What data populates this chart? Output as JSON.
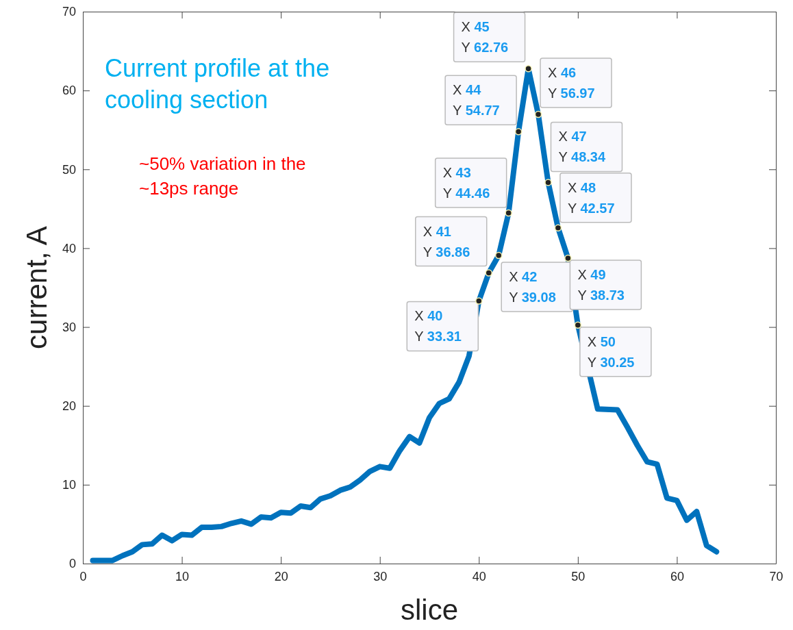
{
  "chart_data": {
    "type": "line",
    "xlabel": "slice",
    "ylabel": "current, A",
    "x": [
      1,
      2,
      3,
      4,
      5,
      6,
      7,
      8,
      9,
      10,
      11,
      12,
      13,
      14,
      15,
      16,
      17,
      18,
      19,
      20,
      21,
      22,
      23,
      24,
      25,
      26,
      27,
      28,
      29,
      30,
      31,
      32,
      33,
      34,
      35,
      36,
      37,
      38,
      39,
      40,
      41,
      42,
      43,
      44,
      45,
      46,
      47,
      48,
      49,
      50,
      51,
      52,
      53,
      54,
      55,
      56,
      57,
      58,
      59,
      60,
      61,
      62,
      63,
      64
    ],
    "series": [
      {
        "color": "#0072bd",
        "values": [
          0.4,
          0.4,
          0.4,
          1.0,
          1.5,
          2.4,
          2.5,
          3.6,
          2.9,
          3.7,
          3.6,
          4.6,
          4.6,
          4.7,
          5.1,
          5.4,
          5.0,
          5.9,
          5.8,
          6.5,
          6.4,
          7.3,
          7.1,
          8.2,
          8.6,
          9.3,
          9.7,
          10.6,
          11.7,
          12.3,
          12.1,
          14.3,
          16.1,
          15.3,
          18.5,
          20.3,
          20.9,
          23.0,
          26.3,
          33.31,
          36.86,
          39.08,
          44.46,
          54.77,
          62.76,
          56.97,
          48.34,
          42.57,
          38.73,
          30.25,
          null,
          19.6,
          null,
          19.5,
          17.3,
          15.0,
          12.9,
          12.6,
          8.3,
          8.0,
          5.5,
          6.6,
          2.3,
          1.5
        ]
      }
    ],
    "xlim": [
      0,
      70
    ],
    "xticks": [
      0,
      10,
      20,
      30,
      40,
      50,
      60,
      70
    ],
    "ylim": [
      0,
      70
    ],
    "yticks": [
      0,
      10,
      20,
      30,
      40,
      50,
      60,
      70
    ],
    "grid": false,
    "marker": "none",
    "line_style": "solid",
    "annotations": [
      "Current profile at the cooling section",
      "~50% variation in the ~13ps range",
      {
        "text": "X 40\nY 33.31",
        "x": 40,
        "y": 33.31
      },
      {
        "text": "X 41\nY 36.86",
        "x": 41,
        "y": 36.86
      },
      {
        "text": "X 42\nY 39.08",
        "x": 42,
        "y": 39.08
      },
      {
        "text": "X 43\nY 44.46",
        "x": 43,
        "y": 44.46
      },
      {
        "text": "X 44\nY 54.77",
        "x": 44,
        "y": 54.77
      },
      {
        "text": "X 45\nY 62.76",
        "x": 45,
        "y": 62.76
      },
      {
        "text": "X 46\nY 56.97",
        "x": 46,
        "y": 56.97
      },
      {
        "text": "X 47\nY 48.34",
        "x": 47,
        "y": 48.34
      },
      {
        "text": "X 48\nY 42.57",
        "x": 48,
        "y": 42.57
      },
      {
        "text": "X 49\nY 38.73",
        "x": 49,
        "y": 38.73
      },
      {
        "text": "X 50\nY 30.25",
        "x": 50,
        "y": 30.25
      }
    ]
  }
}
